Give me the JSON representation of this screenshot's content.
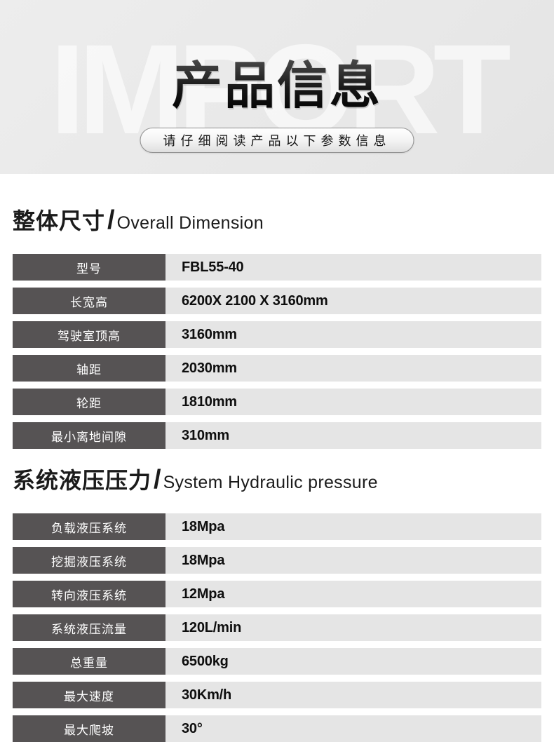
{
  "hero": {
    "watermark": "IMPORT",
    "title": "产品信息",
    "subtitle": "请仔细阅读产品以下参数信息"
  },
  "ui": {
    "separator": "/"
  },
  "colors": {
    "hero_bg": "#e9e9e9",
    "watermark_color": "#f4f4f4",
    "label_cell_bg": "#565354",
    "value_cell_bg": "#e5e5e5",
    "label_text": "#ffffff",
    "body_text": "#111111"
  },
  "sections": [
    {
      "title_zh": "整体尺寸",
      "title_en": "Overall Dimension",
      "rows": [
        {
          "label": "型号",
          "value": "FBL55-40"
        },
        {
          "label": "长宽高",
          "value": "6200X 2100 X 3160mm"
        },
        {
          "label": "驾驶室顶高",
          "value": "3160mm"
        },
        {
          "label": "轴距",
          "value": "2030mm"
        },
        {
          "label": "轮距",
          "value": "1810mm"
        },
        {
          "label": "最小离地间隙",
          "value": "310mm"
        }
      ]
    },
    {
      "title_zh": "系统液压压力",
      "title_en": "System Hydraulic pressure",
      "rows": [
        {
          "label": "负载液压系统",
          "value": "18Mpa"
        },
        {
          "label": "挖掘液压系统",
          "value": "18Mpa"
        },
        {
          "label": "转向液压系统",
          "value": "12Mpa"
        },
        {
          "label": "系统液压流量",
          "value": "120L/min"
        },
        {
          "label": "总重量",
          "value": "6500kg"
        },
        {
          "label": "最大速度",
          "value": "30Km/h"
        },
        {
          "label": "最大爬坡",
          "value": "30°"
        }
      ]
    }
  ]
}
